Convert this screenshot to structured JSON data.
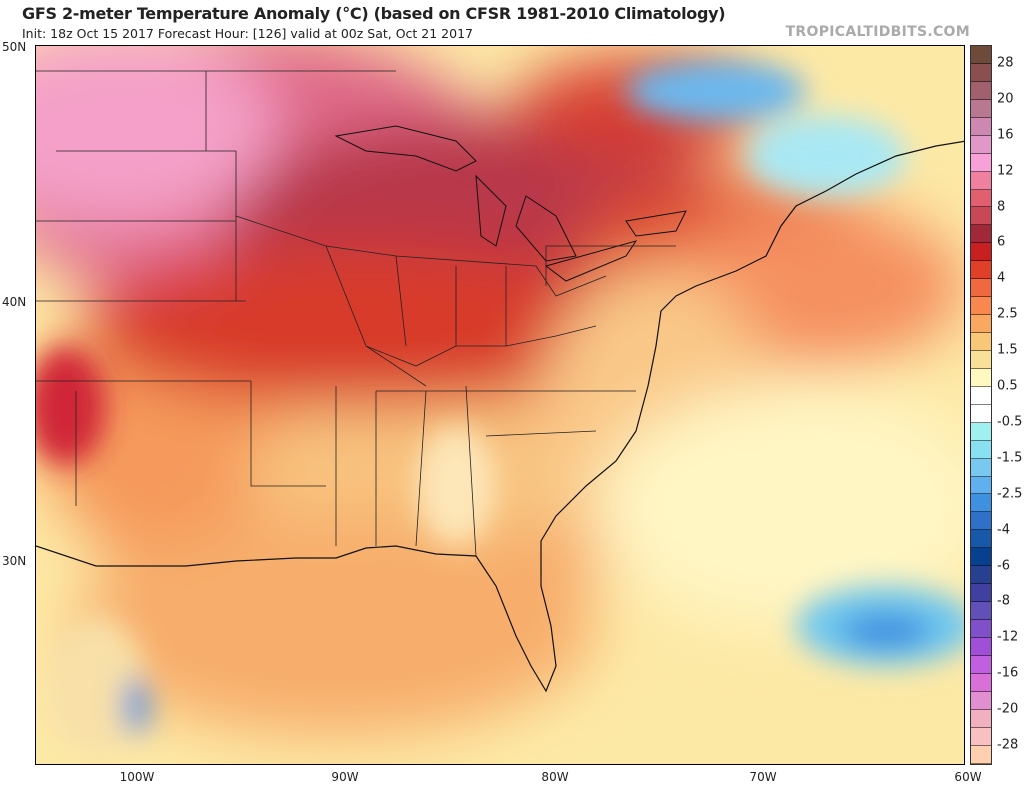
{
  "header": {
    "title": "GFS 2-meter Temperature Anomaly (°C) (based on CFSR 1981-2010 Climatology)",
    "subtitle": "Init: 18z Oct 15 2017   Forecast Hour: [126]   valid at 00z Sat, Oct 21 2017",
    "brand": "TROPICALTIDBITS.COM"
  },
  "axes": {
    "lat_labels": [
      "50N",
      "40N",
      "30N"
    ],
    "lon_labels": [
      "100W",
      "90W",
      "80W",
      "70W",
      "60W"
    ]
  },
  "colorbar": {
    "labels": [
      "28",
      "20",
      "16",
      "12",
      "8",
      "6",
      "4",
      "2.5",
      "1.5",
      "0.5",
      "-0.5",
      "-1.5",
      "-2.5",
      "-4",
      "-6",
      "-8",
      "-12",
      "-16",
      "-20",
      "-28"
    ],
    "colors": [
      "#6e4a3a",
      "#8a5050",
      "#a0606e",
      "#b87890",
      "#cc88b0",
      "#e098c8",
      "#f8a0d8",
      "#f080a0",
      "#e06070",
      "#c84858",
      "#a02838",
      "#c82020",
      "#e04028",
      "#f06840",
      "#f88850",
      "#f8a860",
      "#f8c878",
      "#f8e098",
      "#fff8c0",
      "#ffffff",
      "#ffffff",
      "#a0f0f0",
      "#88e0f0",
      "#78c8f0",
      "#60b0f0",
      "#4090e0",
      "#3070c8",
      "#1858a8",
      "#084090",
      "#284090",
      "#4040a0",
      "#6050b8",
      "#8050c8",
      "#a050d8",
      "#c060e0",
      "#d870d8",
      "#e090d0",
      "#f0b0c0",
      "#f8c0c0",
      "#ffd0b0"
    ]
  }
}
